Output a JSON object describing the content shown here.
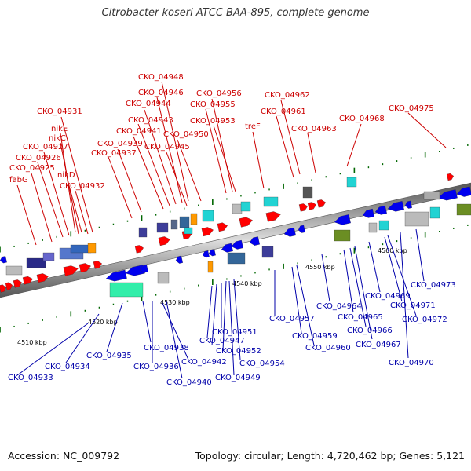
{
  "title": "Citrobacter koseri ATCC BAA-895, complete genome",
  "footer": {
    "accession": "Accession: NC_009792",
    "topology": "Topology: circular; Length: 4,720,462 bp; Genes: 5,121"
  },
  "colors": {
    "forward_label": "#cc0000",
    "reverse_label": "#0000aa",
    "forward_gene": "#ff0000",
    "reverse_gene": "#0000ee",
    "backbone": "#7a7a7a",
    "scale_tick": "#006600",
    "cog_dark_blue": "#3d3d99",
    "cog_teal": "#22d3d3",
    "cog_green": "#6b8e23",
    "cog_orange": "#ff9900",
    "cog_gray": "#bbbbbb",
    "cog_mint": "#33eeaa"
  },
  "scale_labels": [
    "4510 kbp",
    "4520 kbp",
    "4530 kbp",
    "4540 kbp",
    "4550 kbp",
    "4560 kbp"
  ],
  "forward_labels": [
    "CKO_04948",
    "CKO_04946",
    "CKO_04944",
    "CKO_04956",
    "CKO_04962",
    "CKO_04955",
    "CKO_04975",
    "CKO_04931",
    "CKO_04961",
    "CKO_04943",
    "CKO_04953",
    "CKO_04968",
    "nikE",
    "CKO_04941",
    "treF",
    "CKO_04963",
    "nikC",
    "CKO_04950",
    "CKO_04939",
    "CKO_04927",
    "CKO_04945",
    "CKO_04937",
    "CKO_04926",
    "CKO_04925",
    "nikD",
    "fabG",
    "CKO_04932"
  ],
  "reverse_labels": [
    "CKO_04973",
    "CKO_04969",
    "CKO_04971",
    "CKO_04964",
    "CKO_04957",
    "CKO_04965",
    "CKO_04972",
    "CKO_04951",
    "CKO_04959",
    "CKO_04966",
    "CKO_04947",
    "CKO_04938",
    "CKO_04960",
    "CKO_04967",
    "CKO_04952",
    "CKO_04935",
    "CKO_04942",
    "CKO_04954",
    "CKO_04970",
    "CKO_04936",
    "CKO_04934",
    "CKO_04949",
    "CKO_04933",
    "CKO_04940"
  ]
}
